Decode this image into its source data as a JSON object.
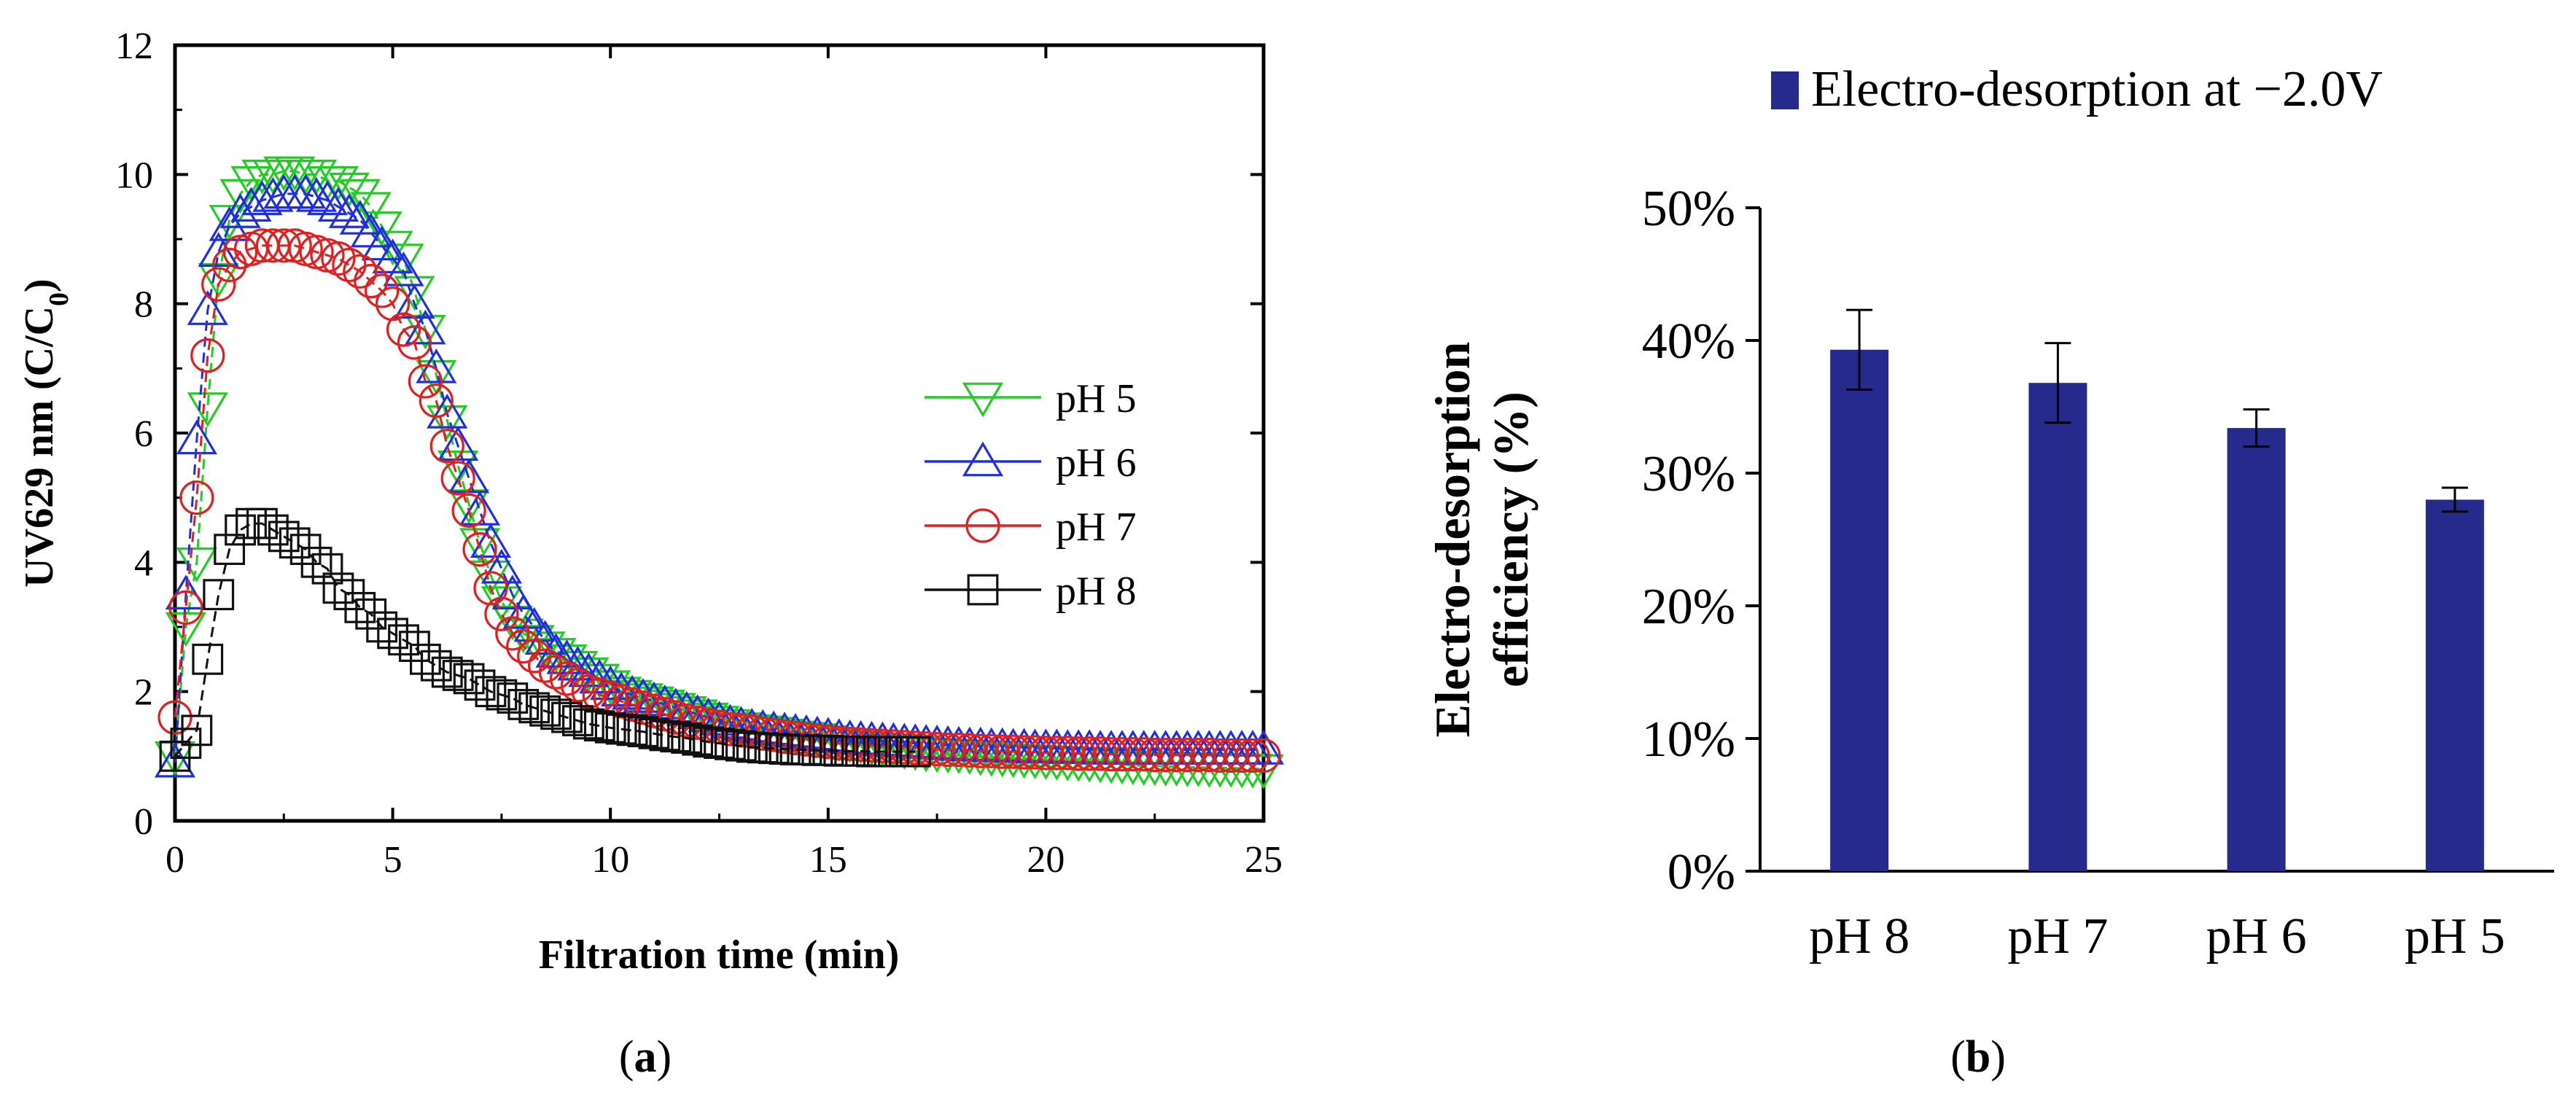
{
  "chart_data": [
    {
      "panel_label": "(a)",
      "type": "line",
      "title": "",
      "xlabel": "Filtration time (min)",
      "ylabel_main": "UV629 nm (C/C",
      "ylabel_sub": "0",
      "ylabel_close": ")",
      "xlim": [
        0,
        25
      ],
      "ylim": [
        0,
        12
      ],
      "xticks": [
        "0",
        "5",
        "10",
        "15",
        "20",
        "25"
      ],
      "yticks": [
        "0",
        "2",
        "4",
        "6",
        "8",
        "10",
        "12"
      ],
      "legend": [
        "pH 5",
        "pH 6",
        "pH 7",
        "pH 8"
      ],
      "legend_position": "center-right",
      "series": [
        {
          "name": "pH 5",
          "marker": "triangle-down",
          "color": "#22cc22",
          "x": [
            0,
            0.25,
            0.5,
            0.75,
            1.0,
            1.25,
            1.5,
            1.75,
            2.0,
            2.25,
            2.5,
            2.75,
            3.0,
            3.25,
            3.5,
            3.75,
            4.0,
            4.25,
            4.5,
            4.75,
            5.0,
            5.25,
            5.5,
            5.75,
            6.0,
            6.25,
            6.5,
            6.75,
            7.0,
            7.25,
            7.5,
            7.75,
            8.0,
            8.25,
            8.5,
            8.75,
            9.0,
            9.25,
            9.5,
            9.75,
            10.0,
            10.25,
            10.5,
            10.75,
            11.0,
            11.25,
            11.5,
            11.75,
            12.0,
            12.25,
            12.5,
            12.75,
            13.0,
            13.25,
            13.5,
            13.75,
            14.0,
            14.25,
            14.5,
            14.75,
            15.0,
            15.25,
            15.5,
            15.75,
            16.0,
            16.25,
            16.5,
            16.75,
            17.0,
            17.25,
            17.5,
            17.75,
            18.0,
            18.25,
            18.5,
            18.75,
            19.0,
            19.25,
            19.5,
            19.75,
            20.0,
            20.25,
            20.5,
            20.75,
            21.0,
            21.25,
            21.5,
            21.75,
            22.0,
            22.25,
            22.5,
            22.75,
            23.0,
            23.25,
            23.5,
            23.75,
            24.0,
            24.25,
            24.5,
            24.75,
            25.0
          ],
          "y": [
            1.0,
            3.0,
            4.0,
            6.4,
            8.4,
            9.3,
            9.7,
            9.9,
            10.0,
            10.0,
            10.05,
            10.05,
            10.0,
            10.0,
            9.9,
            9.9,
            9.8,
            9.7,
            9.5,
            9.2,
            8.9,
            8.7,
            8.2,
            7.6,
            6.9,
            6.2,
            5.5,
            4.9,
            4.3,
            3.8,
            3.4,
            3.1,
            2.9,
            2.8,
            2.7,
            2.6,
            2.5,
            2.4,
            2.3,
            2.2,
            2.1,
            2.0,
            1.95,
            1.9,
            1.85,
            1.8,
            1.75,
            1.7,
            1.65,
            1.6,
            1.55,
            1.5,
            1.45,
            1.42,
            1.4,
            1.38,
            1.35,
            1.32,
            1.3,
            1.28,
            1.25,
            1.22,
            1.2,
            1.18,
            1.16,
            1.14,
            1.12,
            1.1,
            1.08,
            1.06,
            1.05,
            1.04,
            1.03,
            1.02,
            1.0,
            0.99,
            0.98,
            0.97,
            0.96,
            0.95,
            0.94,
            0.93,
            0.92,
            0.91,
            0.9,
            0.89,
            0.88,
            0.87,
            0.86,
            0.85,
            0.85,
            0.84,
            0.84,
            0.83,
            0.83,
            0.82,
            0.82,
            0.82,
            0.81,
            0.81,
            0.8
          ]
        },
        {
          "name": "pH 6",
          "marker": "triangle-up",
          "color": "#1f2fe0",
          "x": [
            0,
            0.25,
            0.5,
            0.75,
            1.0,
            1.25,
            1.5,
            1.75,
            2.0,
            2.25,
            2.5,
            2.75,
            3.0,
            3.25,
            3.5,
            3.75,
            4.0,
            4.25,
            4.5,
            4.75,
            5.0,
            5.25,
            5.5,
            5.75,
            6.0,
            6.25,
            6.5,
            6.75,
            7.0,
            7.25,
            7.5,
            7.75,
            8.0,
            8.25,
            8.5,
            8.75,
            9.0,
            9.25,
            9.5,
            9.75,
            10.0,
            10.25,
            10.5,
            10.75,
            11.0,
            11.25,
            11.5,
            11.75,
            12.0,
            12.25,
            12.5,
            12.75,
            13.0,
            13.25,
            13.5,
            13.75,
            14.0,
            14.25,
            14.5,
            14.75,
            15.0,
            15.25,
            15.5,
            15.75,
            16.0,
            16.25,
            16.5,
            16.75,
            17.0,
            17.25,
            17.5,
            17.75,
            18.0,
            18.25,
            18.5,
            18.75,
            19.0,
            19.25,
            19.5,
            19.75,
            20.0,
            20.25,
            20.5,
            20.75,
            21.0,
            21.25,
            21.5,
            21.75,
            22.0,
            22.25,
            22.5,
            22.75,
            23.0,
            23.25,
            23.5,
            23.75,
            24.0,
            24.25,
            24.5,
            24.75,
            25.0
          ],
          "y": [
            0.9,
            3.5,
            5.9,
            7.9,
            8.8,
            9.2,
            9.4,
            9.5,
            9.6,
            9.65,
            9.7,
            9.7,
            9.7,
            9.65,
            9.6,
            9.5,
            9.4,
            9.3,
            9.1,
            8.9,
            8.7,
            8.5,
            8.0,
            7.6,
            7.0,
            6.3,
            5.8,
            5.3,
            4.8,
            4.3,
            3.9,
            3.5,
            3.2,
            3.0,
            2.8,
            2.6,
            2.5,
            2.4,
            2.3,
            2.2,
            2.1,
            2.0,
            1.95,
            1.9,
            1.85,
            1.8,
            1.75,
            1.7,
            1.65,
            1.6,
            1.55,
            1.5,
            1.47,
            1.44,
            1.42,
            1.4,
            1.38,
            1.36,
            1.34,
            1.32,
            1.3,
            1.28,
            1.26,
            1.25,
            1.24,
            1.23,
            1.22,
            1.21,
            1.2,
            1.19,
            1.18,
            1.17,
            1.16,
            1.15,
            1.15,
            1.14,
            1.14,
            1.13,
            1.13,
            1.12,
            1.12,
            1.12,
            1.11,
            1.11,
            1.11,
            1.1,
            1.1,
            1.1,
            1.1,
            1.1,
            1.1,
            1.1,
            1.1,
            1.1,
            1.1,
            1.1,
            1.1,
            1.1,
            1.1,
            1.1,
            1.1
          ]
        },
        {
          "name": "pH 7",
          "marker": "circle",
          "color": "#e02020",
          "x": [
            0,
            0.25,
            0.5,
            0.75,
            1.0,
            1.25,
            1.5,
            1.75,
            2.0,
            2.25,
            2.5,
            2.75,
            3.0,
            3.25,
            3.5,
            3.75,
            4.0,
            4.25,
            4.5,
            4.75,
            5.0,
            5.25,
            5.5,
            5.75,
            6.0,
            6.25,
            6.5,
            6.75,
            7.0,
            7.25,
            7.5,
            7.75,
            8.0,
            8.25,
            8.5,
            8.75,
            9.0,
            9.25,
            9.5,
            9.75,
            10.0,
            10.25,
            10.5,
            10.75,
            11.0,
            11.25,
            11.5,
            11.75,
            12.0,
            12.25,
            12.5,
            12.75,
            13.0,
            13.25,
            13.5,
            13.75,
            14.0,
            14.25,
            14.5,
            14.75,
            15.0,
            15.25,
            15.5,
            15.75,
            16.0,
            16.25,
            16.5,
            16.75,
            17.0,
            17.25,
            17.5,
            17.75,
            18.0,
            18.25,
            18.5,
            18.75,
            19.0,
            19.25,
            19.5,
            19.75,
            20.0,
            20.25,
            20.5,
            20.75,
            21.0,
            21.25,
            21.5,
            21.75,
            22.0,
            22.25,
            22.5,
            22.75,
            23.0,
            23.25,
            23.5,
            23.75,
            24.0,
            24.25,
            24.5,
            24.75,
            25.0
          ],
          "y": [
            1.6,
            3.3,
            5.0,
            7.2,
            8.3,
            8.6,
            8.8,
            8.85,
            8.9,
            8.9,
            8.9,
            8.9,
            8.85,
            8.8,
            8.75,
            8.7,
            8.6,
            8.5,
            8.35,
            8.2,
            8.0,
            7.6,
            7.4,
            6.8,
            6.5,
            5.8,
            5.3,
            4.8,
            4.2,
            3.6,
            3.2,
            2.9,
            2.7,
            2.55,
            2.4,
            2.3,
            2.2,
            2.1,
            2.0,
            1.95,
            1.9,
            1.85,
            1.8,
            1.75,
            1.7,
            1.65,
            1.6,
            1.55,
            1.52,
            1.48,
            1.45,
            1.42,
            1.4,
            1.38,
            1.35,
            1.33,
            1.3,
            1.28,
            1.26,
            1.24,
            1.22,
            1.2,
            1.19,
            1.18,
            1.17,
            1.16,
            1.15,
            1.14,
            1.13,
            1.12,
            1.11,
            1.1,
            1.1,
            1.09,
            1.08,
            1.08,
            1.07,
            1.07,
            1.06,
            1.06,
            1.05,
            1.05,
            1.05,
            1.04,
            1.04,
            1.04,
            1.03,
            1.03,
            1.03,
            1.03,
            1.02,
            1.02,
            1.02,
            1.02,
            1.02,
            1.02,
            1.01,
            1.01,
            1.01,
            1.01,
            1.01
          ]
        },
        {
          "name": "pH 8",
          "marker": "square",
          "color": "#111111",
          "x": [
            0,
            0.25,
            0.5,
            0.75,
            1.0,
            1.25,
            1.5,
            1.75,
            2.0,
            2.25,
            2.5,
            2.75,
            3.0,
            3.25,
            3.5,
            3.75,
            4.0,
            4.25,
            4.5,
            4.75,
            5.0,
            5.25,
            5.5,
            5.75,
            6.0,
            6.25,
            6.5,
            6.75,
            7.0,
            7.25,
            7.5,
            7.75,
            8.0,
            8.25,
            8.5,
            8.75,
            9.0,
            9.25,
            9.5,
            9.75,
            10.0,
            10.25,
            10.5,
            10.75,
            11.0,
            11.25,
            11.5,
            11.75,
            12.0,
            12.25,
            12.5,
            12.75,
            13.0,
            13.25,
            13.5,
            13.75,
            14.0,
            14.25,
            14.5,
            14.75,
            15.0,
            15.25,
            15.5,
            15.75,
            16.0,
            16.25,
            16.5,
            16.75,
            17.0
          ],
          "y": [
            1.0,
            1.2,
            1.4,
            2.5,
            3.5,
            4.2,
            4.5,
            4.6,
            4.6,
            4.5,
            4.4,
            4.3,
            4.2,
            4.0,
            3.9,
            3.6,
            3.5,
            3.3,
            3.2,
            3.0,
            2.9,
            2.8,
            2.7,
            2.5,
            2.4,
            2.3,
            2.25,
            2.2,
            2.1,
            2.0,
            1.95,
            1.9,
            1.8,
            1.75,
            1.7,
            1.65,
            1.6,
            1.55,
            1.5,
            1.47,
            1.44,
            1.42,
            1.4,
            1.38,
            1.35,
            1.32,
            1.3,
            1.28,
            1.25,
            1.22,
            1.2,
            1.18,
            1.16,
            1.14,
            1.13,
            1.12,
            1.11,
            1.1,
            1.1,
            1.09,
            1.09,
            1.08,
            1.08,
            1.08,
            1.07,
            1.07,
            1.07,
            1.07,
            1.07
          ]
        }
      ]
    },
    {
      "panel_label": "(b)",
      "type": "bar",
      "title": "",
      "xlabel": "",
      "ylabel_line1": "Electro-desorption",
      "ylabel_line2": "efficiency (%)",
      "ylim": [
        0,
        50
      ],
      "yticks": [
        "0%",
        "10%",
        "20%",
        "30%",
        "40%",
        "50%"
      ],
      "categories": [
        "pH 8",
        "pH 7",
        "pH 6",
        "pH 5"
      ],
      "series": [
        {
          "name": "Electro-desorption at −2.0V",
          "color": "#252a8c",
          "values": [
            39.3,
            36.8,
            33.4,
            28.0
          ],
          "errors": [
            3.0,
            3.0,
            1.4,
            0.9
          ]
        }
      ],
      "legend": [
        "Electro-desorption at −2.0V"
      ],
      "legend_position": "top"
    }
  ]
}
